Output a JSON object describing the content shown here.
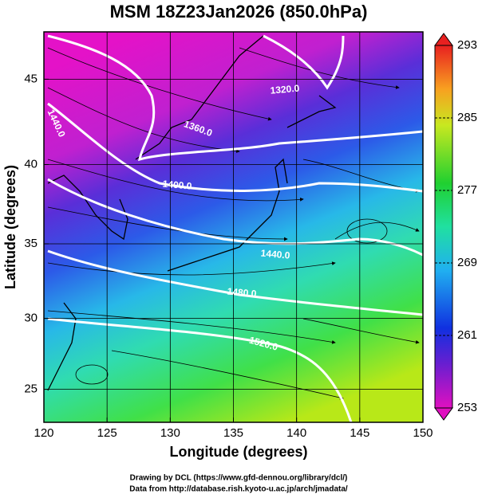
{
  "chart_data": {
    "type": "map",
    "projection": "mercator",
    "title": "MSM 18Z23Jan2026 (850.0hPa)",
    "x_label": "Longitude (degrees)",
    "y_label": "Latitude  (degrees)",
    "xlim": [
      120,
      150
    ],
    "xticks": [
      120,
      125,
      130,
      135,
      140,
      145,
      150
    ],
    "ylim": [
      22.6,
      47.6
    ],
    "yticks": [
      25,
      30,
      35,
      40,
      45
    ],
    "grid": true,
    "colorbar": {
      "lim": [
        253,
        293
      ],
      "ticks": [
        253,
        261,
        269,
        277,
        285,
        293
      ]
    },
    "contour_labels": [
      "1320.0",
      "1360.0",
      "1400.0",
      "1440.0",
      "1440.0",
      "1480.0",
      "1520.0"
    ],
    "credits": [
      "Drawing by DCL (https://www.gfd-dennou.org/library/dcl/)",
      "Data from http://database.rish.kyoto-u.ac.jp/arch/jmadata/"
    ]
  }
}
